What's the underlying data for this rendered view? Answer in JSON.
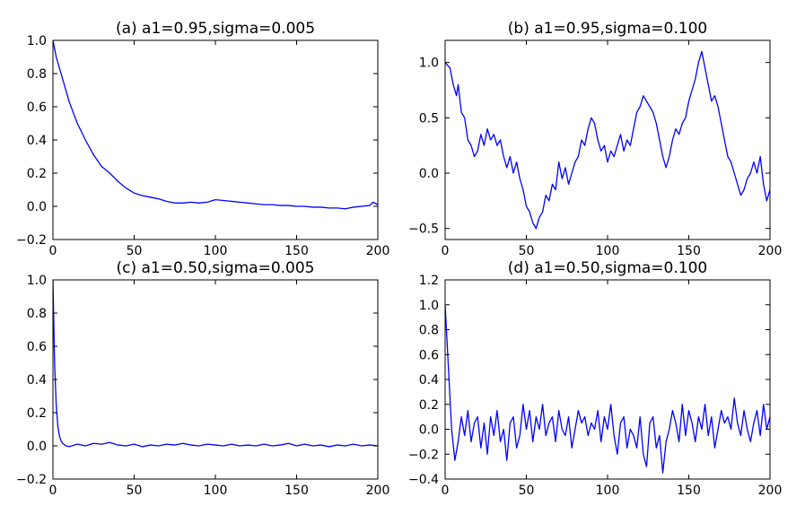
{
  "chart_data": [
    {
      "type": "line",
      "title": "(a) a1=0.95,sigma=0.005",
      "xlabel": "",
      "ylabel": "",
      "xlim": [
        0,
        200
      ],
      "ylim": [
        -0.2,
        1.0
      ],
      "xticks": [
        0,
        50,
        100,
        150,
        200
      ],
      "xtick_labels": [
        "0",
        "50",
        "100",
        "150",
        "200"
      ],
      "yticks": [
        -0.2,
        0.0,
        0.2,
        0.4,
        0.6,
        0.8,
        1.0
      ],
      "ytick_labels": [
        "−0.2",
        "0.0",
        "0.2",
        "0.4",
        "0.6",
        "0.8",
        "1.0"
      ],
      "grid": false,
      "color": "#0000ff",
      "series": [
        {
          "x": [
            0,
            2,
            5,
            10,
            15,
            20,
            25,
            30,
            35,
            40,
            45,
            50,
            55,
            60,
            65,
            70,
            75,
            80,
            85,
            90,
            95,
            100,
            105,
            110,
            115,
            120,
            125,
            130,
            135,
            140,
            145,
            150,
            155,
            160,
            165,
            170,
            175,
            180,
            185,
            190,
            195,
            197,
            200
          ],
          "y": [
            1.0,
            0.9,
            0.8,
            0.63,
            0.5,
            0.4,
            0.31,
            0.24,
            0.2,
            0.15,
            0.11,
            0.08,
            0.065,
            0.055,
            0.045,
            0.03,
            0.02,
            0.02,
            0.025,
            0.02,
            0.025,
            0.04,
            0.035,
            0.03,
            0.025,
            0.02,
            0.015,
            0.01,
            0.01,
            0.005,
            0.005,
            0.0,
            0.0,
            -0.005,
            -0.005,
            -0.01,
            -0.01,
            -0.015,
            -0.005,
            0.0,
            0.005,
            0.025,
            0.01
          ]
        }
      ]
    },
    {
      "type": "line",
      "title": "(b) a1=0.95,sigma=0.100",
      "xlabel": "",
      "ylabel": "",
      "xlim": [
        0,
        200
      ],
      "ylim": [
        -0.6,
        1.2
      ],
      "xticks": [
        0,
        50,
        100,
        150,
        200
      ],
      "xtick_labels": [
        "0",
        "50",
        "100",
        "150",
        "200"
      ],
      "yticks": [
        -0.5,
        0.0,
        0.5,
        1.0
      ],
      "ytick_labels": [
        "−0.5",
        "0.0",
        "0.5",
        "1.0"
      ],
      "grid": false,
      "color": "#0000ff",
      "series": [
        {
          "x": [
            0,
            3,
            5,
            7,
            8,
            10,
            12,
            14,
            16,
            18,
            20,
            22,
            24,
            26,
            28,
            30,
            32,
            34,
            36,
            38,
            40,
            42,
            44,
            46,
            48,
            50,
            52,
            54,
            56,
            58,
            60,
            62,
            64,
            66,
            68,
            70,
            72,
            74,
            76,
            78,
            80,
            82,
            84,
            86,
            88,
            90,
            92,
            94,
            96,
            98,
            100,
            102,
            104,
            106,
            108,
            110,
            112,
            114,
            116,
            118,
            120,
            122,
            124,
            126,
            128,
            130,
            132,
            134,
            136,
            138,
            140,
            142,
            144,
            146,
            148,
            150,
            152,
            154,
            156,
            158,
            160,
            162,
            164,
            166,
            168,
            170,
            172,
            174,
            176,
            178,
            180,
            182,
            184,
            186,
            188,
            190,
            192,
            194,
            196,
            198,
            200
          ],
          "y": [
            1.0,
            0.95,
            0.8,
            0.7,
            0.8,
            0.55,
            0.5,
            0.3,
            0.25,
            0.15,
            0.2,
            0.35,
            0.25,
            0.4,
            0.3,
            0.35,
            0.25,
            0.3,
            0.15,
            0.05,
            0.15,
            0.0,
            0.1,
            -0.05,
            -0.15,
            -0.3,
            -0.35,
            -0.45,
            -0.5,
            -0.4,
            -0.35,
            -0.2,
            -0.25,
            -0.1,
            -0.15,
            0.1,
            -0.05,
            0.05,
            -0.1,
            0.0,
            0.1,
            0.15,
            0.3,
            0.25,
            0.4,
            0.5,
            0.45,
            0.3,
            0.2,
            0.25,
            0.1,
            0.2,
            0.15,
            0.25,
            0.35,
            0.2,
            0.3,
            0.25,
            0.4,
            0.55,
            0.6,
            0.7,
            0.65,
            0.6,
            0.55,
            0.45,
            0.3,
            0.15,
            0.05,
            0.15,
            0.3,
            0.4,
            0.35,
            0.45,
            0.5,
            0.65,
            0.75,
            0.85,
            1.0,
            1.1,
            0.95,
            0.8,
            0.65,
            0.7,
            0.6,
            0.45,
            0.3,
            0.15,
            0.1,
            0.0,
            -0.1,
            -0.2,
            -0.15,
            -0.05,
            0.0,
            0.1,
            0.0,
            0.15,
            -0.1,
            -0.25,
            -0.15
          ]
        }
      ]
    },
    {
      "type": "line",
      "title": "(c) a1=0.50,sigma=0.005",
      "xlabel": "",
      "ylabel": "",
      "xlim": [
        0,
        200
      ],
      "ylim": [
        -0.2,
        1.0
      ],
      "xticks": [
        0,
        50,
        100,
        150,
        200
      ],
      "xtick_labels": [
        "0",
        "50",
        "100",
        "150",
        "200"
      ],
      "yticks": [
        -0.2,
        0.0,
        0.2,
        0.4,
        0.6,
        0.8,
        1.0
      ],
      "ytick_labels": [
        "−0.2",
        "0.0",
        "0.2",
        "0.4",
        "0.6",
        "0.8",
        "1.0"
      ],
      "grid": false,
      "color": "#0000ff",
      "series": [
        {
          "x": [
            0,
            1,
            2,
            3,
            4,
            5,
            6,
            8,
            10,
            15,
            20,
            25,
            30,
            35,
            40,
            45,
            50,
            55,
            60,
            65,
            70,
            75,
            80,
            85,
            90,
            95,
            100,
            105,
            110,
            115,
            120,
            125,
            130,
            135,
            140,
            145,
            150,
            155,
            160,
            165,
            170,
            175,
            180,
            185,
            190,
            195,
            200
          ],
          "y": [
            1.0,
            0.5,
            0.25,
            0.12,
            0.06,
            0.03,
            0.015,
            0.0,
            -0.005,
            0.01,
            0.0,
            0.015,
            0.01,
            0.02,
            0.005,
            0.0,
            0.01,
            -0.005,
            0.005,
            0.0,
            0.01,
            0.005,
            0.015,
            0.005,
            0.0,
            0.01,
            0.005,
            0.0,
            0.01,
            0.0,
            0.005,
            0.0,
            0.01,
            0.0,
            0.005,
            0.015,
            0.0,
            0.01,
            0.0,
            0.005,
            -0.005,
            0.005,
            0.0,
            0.01,
            0.0,
            0.005,
            0.0
          ]
        }
      ]
    },
    {
      "type": "line",
      "title": "(d) a1=0.50,sigma=0.100",
      "xlabel": "",
      "ylabel": "",
      "xlim": [
        0,
        200
      ],
      "ylim": [
        -0.4,
        1.2
      ],
      "xticks": [
        0,
        50,
        100,
        150,
        200
      ],
      "xtick_labels": [
        "0",
        "50",
        "100",
        "150",
        "200"
      ],
      "yticks": [
        -0.4,
        -0.2,
        0.0,
        0.2,
        0.4,
        0.6,
        0.8,
        1.0,
        1.2
      ],
      "ytick_labels": [
        "−0.4",
        "−0.2",
        "0.0",
        "0.2",
        "0.4",
        "0.6",
        "0.8",
        "1.0",
        "1.2"
      ],
      "grid": false,
      "color": "#0000ff",
      "series": [
        {
          "x": [
            0,
            2,
            4,
            6,
            8,
            10,
            12,
            14,
            16,
            18,
            20,
            22,
            24,
            26,
            28,
            30,
            32,
            34,
            36,
            38,
            40,
            42,
            44,
            46,
            48,
            50,
            52,
            54,
            56,
            58,
            60,
            62,
            64,
            66,
            68,
            70,
            72,
            74,
            76,
            78,
            80,
            82,
            84,
            86,
            88,
            90,
            92,
            94,
            96,
            98,
            100,
            102,
            104,
            106,
            108,
            110,
            112,
            114,
            116,
            118,
            120,
            122,
            124,
            126,
            128,
            130,
            132,
            134,
            136,
            138,
            140,
            142,
            144,
            146,
            148,
            150,
            152,
            154,
            156,
            158,
            160,
            162,
            164,
            166,
            168,
            170,
            172,
            174,
            176,
            178,
            180,
            182,
            184,
            186,
            188,
            190,
            192,
            194,
            196,
            198,
            200
          ],
          "y": [
            1.0,
            0.5,
            0.0,
            -0.25,
            -0.1,
            0.1,
            -0.05,
            0.15,
            -0.1,
            0.05,
            0.1,
            -0.15,
            0.05,
            -0.2,
            0.1,
            -0.05,
            0.15,
            -0.1,
            0.0,
            -0.25,
            0.05,
            0.1,
            -0.15,
            -0.05,
            0.2,
            0.0,
            0.15,
            -0.1,
            0.1,
            0.0,
            0.2,
            -0.05,
            0.05,
            0.1,
            -0.1,
            0.15,
            0.0,
            -0.05,
            0.1,
            -0.15,
            0.0,
            0.15,
            0.05,
            0.1,
            -0.05,
            0.05,
            0.0,
            0.15,
            -0.1,
            0.1,
            0.0,
            0.2,
            -0.05,
            -0.2,
            0.05,
            0.1,
            -0.15,
            0.0,
            -0.05,
            -0.15,
            0.1,
            -0.2,
            -0.3,
            0.05,
            0.1,
            -0.15,
            -0.05,
            -0.35,
            -0.1,
            0.0,
            0.15,
            0.05,
            -0.1,
            0.2,
            -0.05,
            0.15,
            0.05,
            -0.1,
            0.1,
            0.0,
            0.2,
            -0.05,
            0.1,
            -0.15,
            0.0,
            0.15,
            0.05,
            0.1,
            0.0,
            0.25,
            0.05,
            -0.05,
            0.15,
            0.0,
            -0.1,
            0.05,
            0.15,
            -0.05,
            0.2,
            0.0,
            0.1
          ]
        }
      ]
    }
  ]
}
